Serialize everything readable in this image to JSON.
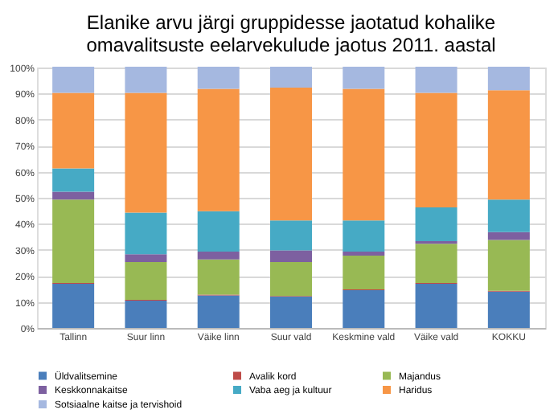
{
  "chart_data": {
    "type": "bar",
    "stacked": true,
    "title": [
      "Elanike arvu järgi gruppidesse jaotatud kohalike",
      "omavalitsuste eelarvekulude jaotus 2011. aastal"
    ],
    "categories": [
      "Tallinn",
      "Suur linn",
      "Väike linn",
      "Suur vald",
      "Keskmine vald",
      "Väike vald",
      "KOKKU"
    ],
    "series": [
      {
        "name": "Üldvalitsemine",
        "color": "#4a7ebb",
        "values": [
          17,
          10.5,
          12.5,
          12,
          14.5,
          17,
          14
        ]
      },
      {
        "name": "Avalik kord",
        "color": "#be4b48",
        "values": [
          0.3,
          0.3,
          0.3,
          0.3,
          0.3,
          0.3,
          0.3
        ]
      },
      {
        "name": "Majandus",
        "color": "#98b954",
        "values": [
          32,
          14.5,
          13.5,
          13,
          13,
          15,
          19.5
        ]
      },
      {
        "name": "Keskkonnakaitse",
        "color": "#7d60a0",
        "values": [
          3,
          3,
          3,
          4.5,
          1.5,
          1,
          3
        ]
      },
      {
        "name": "Vaba aeg ja kultuur",
        "color": "#46aac5",
        "values": [
          9,
          16,
          15.5,
          11.5,
          12,
          13,
          12.5
        ]
      },
      {
        "name": "Haridus",
        "color": "#f79646",
        "values": [
          29,
          46,
          47,
          51,
          50.5,
          44,
          42
        ]
      },
      {
        "name": "Sotsiaalne kaitse ja tervishoid",
        "color": "#a5b8e0",
        "values": [
          10,
          10,
          8.5,
          8,
          8.5,
          10,
          9
        ]
      }
    ],
    "ylim": [
      0,
      100
    ],
    "yticks": [
      {
        "value": 0,
        "label": "0%"
      },
      {
        "value": 10,
        "label": "10%"
      },
      {
        "value": 20,
        "label": "20%"
      },
      {
        "value": 30,
        "label": "30%"
      },
      {
        "value": 40,
        "label": "40%"
      },
      {
        "value": 50,
        "label": "50%"
      },
      {
        "value": 60,
        "label": "60%"
      },
      {
        "value": 70,
        "label": "70%"
      },
      {
        "value": 80,
        "label": "80%"
      },
      {
        "value": 90,
        "label": "90%"
      },
      {
        "value": 100,
        "label": "100%"
      }
    ],
    "grid": "y",
    "legend": "bottom"
  }
}
